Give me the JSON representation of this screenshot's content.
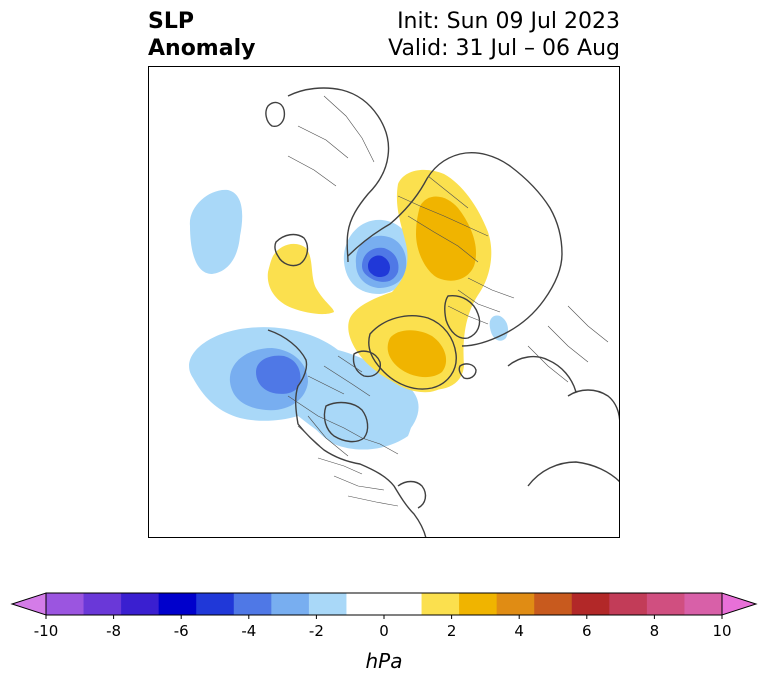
{
  "title": {
    "left_line1": "SLP",
    "left_line2": "Anomaly",
    "right_line1": "Init: Sun 09 Jul 2023",
    "right_line2": "Valid: 31 Jul – 06 Aug"
  },
  "colorbar": {
    "unit": "hPa",
    "tick_labels": [
      "-10",
      "-8",
      "-6",
      "-4",
      "-2",
      "0",
      "2",
      "4",
      "6",
      "8",
      "10"
    ],
    "colors": [
      "#d47ce8",
      "#9b55e0",
      "#6a38d8",
      "#3a1fd0",
      "#0000cc",
      "#2038d8",
      "#4f78e6",
      "#78aef0",
      "#a9d8f8",
      "#ffffff",
      "#ffffff",
      "#fbe04e",
      "#f0b400",
      "#e08c14",
      "#c85a1e",
      "#b22828",
      "#c23c58",
      "#d04f80",
      "#d860a8",
      "#e870d8"
    ]
  },
  "colors": {
    "light_blue": "#a9d8f8",
    "mid_blue": "#78aef0",
    "blue": "#4f78e6",
    "deep_blue": "#2038d8",
    "yellow": "#fbe04e",
    "gold": "#f0b400",
    "coast": "#404040"
  }
}
